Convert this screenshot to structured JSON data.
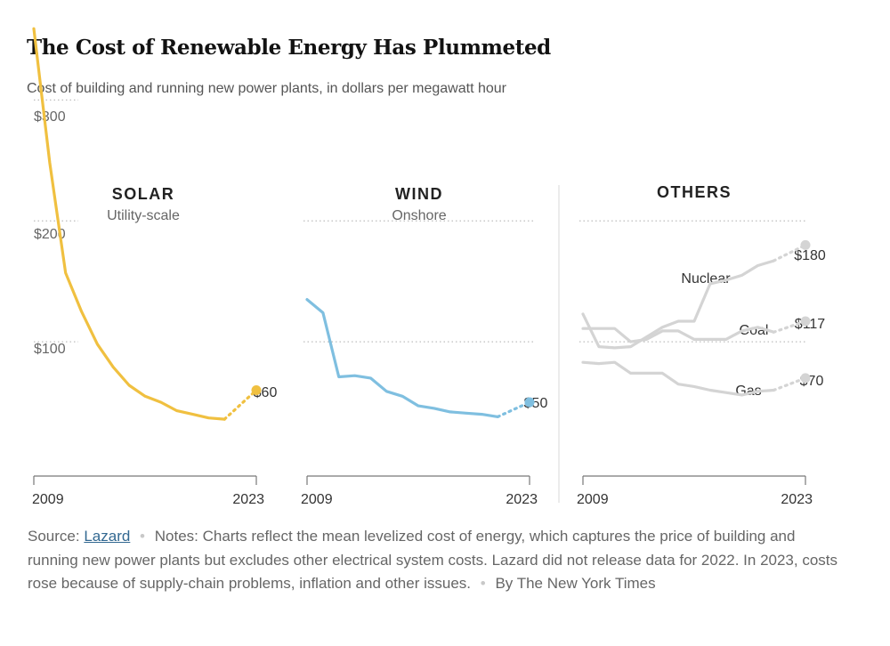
{
  "title": "The Cost of Renewable Energy Has Plummeted",
  "subtitle": "Cost of building and running new power plants, in dollars per megawatt hour",
  "footer": {
    "source_label": "Source:",
    "source_link": "Lazard",
    "notes": "Notes: Charts reflect the mean levelized cost of energy, which captures the price of building and running new power plants but excludes other electrical system costs. Lazard did not release data for 2022. In 2023, costs rose because of supply-chain problems, inflation and other issues.",
    "credit": "By The New York Times"
  },
  "chart_data": [
    {
      "type": "line",
      "title": "SOLAR",
      "subtitle": "Utility-scale",
      "color": "#f0c040",
      "ylim": [
        0,
        340
      ],
      "yticks": [
        100,
        200,
        300
      ],
      "ytick_labels": [
        "$100",
        "$200",
        "$300"
      ],
      "x_start_label": "2009",
      "x_end_label": "2023",
      "series": [
        {
          "x": [
            2009,
            2010,
            2011,
            2012,
            2013,
            2014,
            2015,
            2016,
            2017,
            2018,
            2019,
            2020,
            2021
          ],
          "values": [
            359,
            248,
            157,
            125,
            98,
            79,
            64,
            55,
            50,
            43,
            40,
            37,
            36
          ]
        }
      ],
      "projected": {
        "x": [
          2021,
          2023
        ],
        "values": [
          36,
          60
        ]
      },
      "end_label": "$60"
    },
    {
      "type": "line",
      "title": "WIND",
      "subtitle": "Onshore",
      "color": "#7fbfe0",
      "ylim": [
        0,
        340
      ],
      "x_start_label": "2009",
      "x_end_label": "2023",
      "series": [
        {
          "x": [
            2009,
            2010,
            2011,
            2012,
            2013,
            2014,
            2015,
            2016,
            2017,
            2018,
            2019,
            2020,
            2021
          ],
          "values": [
            135,
            124,
            71,
            72,
            70,
            59,
            55,
            47,
            45,
            42,
            41,
            40,
            38
          ]
        }
      ],
      "projected": {
        "x": [
          2021,
          2023
        ],
        "values": [
          38,
          50
        ]
      },
      "end_label": "$50"
    },
    {
      "type": "line",
      "title": "OTHERS",
      "color": "#d4d4d4",
      "ylim": [
        0,
        340
      ],
      "x_start_label": "2009",
      "x_end_label": "2023",
      "series": [
        {
          "name": "Nuclear",
          "x": [
            2009,
            2010,
            2011,
            2012,
            2013,
            2014,
            2015,
            2016,
            2017,
            2018,
            2019,
            2020,
            2021
          ],
          "values": [
            123,
            96,
            95,
            96,
            104,
            112,
            117,
            117,
            148,
            151,
            155,
            163,
            167
          ],
          "end_label": "$180",
          "projected": {
            "x": [
              2021,
              2023
            ],
            "values": [
              167,
              180
            ]
          }
        },
        {
          "name": "Coal",
          "x": [
            2009,
            2010,
            2011,
            2012,
            2013,
            2014,
            2015,
            2016,
            2017,
            2018,
            2019,
            2020,
            2021
          ],
          "values": [
            111,
            111,
            111,
            100,
            102,
            109,
            109,
            102,
            102,
            102,
            109,
            112,
            108
          ],
          "end_label": "$117",
          "projected": {
            "x": [
              2021,
              2023
            ],
            "values": [
              108,
              117
            ]
          }
        },
        {
          "name": "Gas",
          "x": [
            2009,
            2010,
            2011,
            2012,
            2013,
            2014,
            2015,
            2016,
            2017,
            2018,
            2019,
            2020,
            2021
          ],
          "values": [
            83,
            82,
            83,
            74,
            74,
            74,
            65,
            63,
            60,
            58,
            56,
            59,
            60
          ],
          "end_label": "$70",
          "projected": {
            "x": [
              2021,
              2023
            ],
            "values": [
              60,
              70
            ]
          }
        }
      ]
    }
  ]
}
